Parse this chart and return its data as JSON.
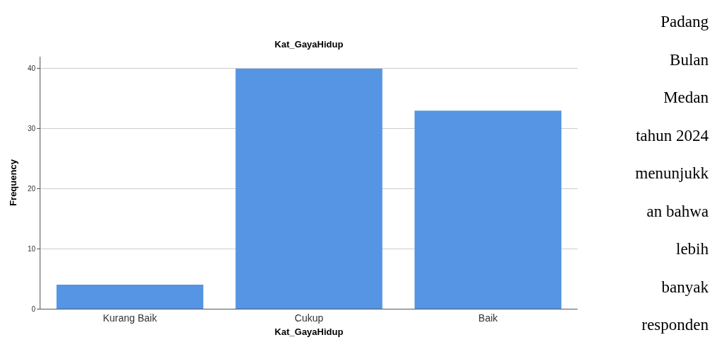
{
  "chart_data": {
    "type": "bar",
    "title": "Kat_GayaHidup",
    "xlabel": "Kat_GayaHidup",
    "ylabel": "Frequency",
    "categories": [
      "Kurang Baik",
      "Cukup",
      "Baik"
    ],
    "values": [
      4,
      40,
      33
    ],
    "color": "#5595e3",
    "ylim": [
      0,
      42
    ],
    "yticks": [
      0,
      10,
      20,
      30,
      40
    ],
    "grid": "y",
    "annotations": [
      "Padang\nBulan\nMedan\ntahun 2024\nmenunjukk\nan bahwa\nlebih\nbanyak\nresponden"
    ]
  }
}
